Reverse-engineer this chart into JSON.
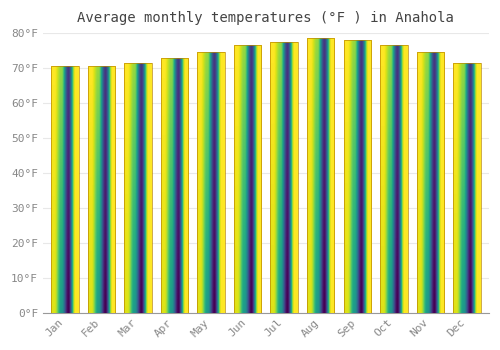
{
  "title": "Average monthly temperatures (°F ) in Anahola",
  "months": [
    "Jan",
    "Feb",
    "Mar",
    "Apr",
    "May",
    "Jun",
    "Jul",
    "Aug",
    "Sep",
    "Oct",
    "Nov",
    "Dec"
  ],
  "values": [
    70.5,
    70.5,
    71.5,
    73.0,
    74.5,
    76.5,
    77.5,
    78.5,
    78.0,
    76.5,
    74.5,
    71.5
  ],
  "bar_color": "#FFAA00",
  "bar_edge_color": "#CC8800",
  "background_color": "#FFFFFF",
  "plot_bg_color": "#FFFFFF",
  "grid_color": "#E8E8E8",
  "text_color": "#888888",
  "ylim": [
    0,
    80
  ],
  "yticks": [
    0,
    10,
    20,
    30,
    40,
    50,
    60,
    70,
    80
  ],
  "ytick_labels": [
    "0°F",
    "10°F",
    "20°F",
    "30°F",
    "40°F",
    "50°F",
    "60°F",
    "70°F",
    "80°F"
  ],
  "title_fontsize": 10,
  "tick_fontsize": 8,
  "bar_width": 0.75,
  "figsize": [
    5.0,
    3.5
  ],
  "dpi": 100
}
